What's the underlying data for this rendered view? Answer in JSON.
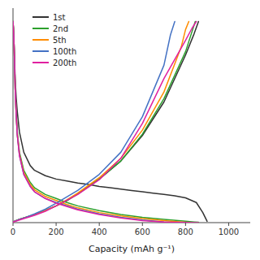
{
  "chart_data": {
    "type": "line",
    "xlabel": "Capacity (mAh g⁻¹)",
    "xlim": [
      0,
      1100
    ],
    "ylim": [
      0,
      3.2
    ],
    "xticks": [
      0,
      200,
      400,
      600,
      800,
      1000
    ],
    "tick_labels": "x",
    "legend": "upper left",
    "series": [
      {
        "name": "1st",
        "color": "#333333",
        "curves": [
          {
            "x": [
              0,
              2,
              4,
              6,
              8,
              10,
              15,
              20,
              30,
              50,
              80,
              100,
              150,
              200,
              250,
              300,
              350,
              400,
              450,
              500,
              550,
              600,
              650,
              700,
              750,
              800,
              850,
              880,
              900
            ],
            "values": [
              3.0,
              2.9,
              2.75,
              2.55,
              2.35,
              2.15,
              1.85,
              1.65,
              1.35,
              1.05,
              0.85,
              0.78,
              0.7,
              0.65,
              0.62,
              0.59,
              0.57,
              0.54,
              0.52,
              0.5,
              0.48,
              0.46,
              0.44,
              0.42,
              0.4,
              0.37,
              0.3,
              0.15,
              0.02
            ]
          },
          {
            "x": [
              0,
              30,
              60,
              100,
              150,
              200,
              250,
              300,
              400,
              500,
              600,
              700,
              800,
              840,
              860
            ],
            "values": [
              0.01,
              0.05,
              0.08,
              0.12,
              0.18,
              0.25,
              0.33,
              0.43,
              0.65,
              0.92,
              1.3,
              1.8,
              2.5,
              2.82,
              3.0
            ]
          }
        ]
      },
      {
        "name": "2nd",
        "color": "#2ca02c",
        "curves": [
          {
            "x": [
              0,
              2,
              4,
              6,
              8,
              10,
              15,
              20,
              30,
              50,
              80,
              100,
              150,
              200,
              250,
              300,
              400,
              500,
              600,
              700,
              800,
              840,
              860
            ],
            "values": [
              3.0,
              2.9,
              2.75,
              2.55,
              2.3,
              2.0,
              1.6,
              1.35,
              1.05,
              0.78,
              0.6,
              0.52,
              0.42,
              0.36,
              0.3,
              0.25,
              0.18,
              0.12,
              0.08,
              0.05,
              0.02,
              0.01,
              0.005
            ]
          },
          {
            "x": [
              0,
              30,
              60,
              100,
              150,
              200,
              250,
              300,
              400,
              500,
              600,
              700,
              800,
              830,
              845
            ],
            "values": [
              0.01,
              0.05,
              0.08,
              0.12,
              0.18,
              0.25,
              0.33,
              0.43,
              0.65,
              0.92,
              1.32,
              1.85,
              2.55,
              2.85,
              3.0
            ]
          }
        ]
      },
      {
        "name": "5th",
        "color": "#ff8c00",
        "curves": [
          {
            "x": [
              0,
              2,
              4,
              6,
              8,
              10,
              15,
              20,
              30,
              50,
              80,
              100,
              150,
              200,
              250,
              300,
              400,
              500,
              600,
              700,
              780,
              810,
              820
            ],
            "values": [
              3.0,
              2.9,
              2.75,
              2.55,
              2.3,
              2.0,
              1.6,
              1.32,
              1.02,
              0.75,
              0.57,
              0.49,
              0.39,
              0.33,
              0.27,
              0.22,
              0.15,
              0.1,
              0.06,
              0.03,
              0.01,
              0.004,
              0.002
            ]
          },
          {
            "x": [
              0,
              30,
              60,
              100,
              150,
              200,
              250,
              300,
              400,
              500,
              600,
              700,
              780,
              800,
              815
            ],
            "values": [
              0.01,
              0.05,
              0.08,
              0.12,
              0.18,
              0.25,
              0.34,
              0.44,
              0.67,
              0.96,
              1.38,
              1.95,
              2.62,
              2.88,
              3.0
            ]
          }
        ]
      },
      {
        "name": "100th",
        "color": "#4472c4",
        "curves": [
          {
            "x": [
              0,
              2,
              4,
              6,
              8,
              10,
              15,
              20,
              30,
              50,
              80,
              100,
              150,
              200,
              300,
              400,
              500,
              600,
              700,
              740,
              760
            ],
            "values": [
              3.0,
              2.9,
              2.75,
              2.55,
              2.3,
              2.0,
              1.6,
              1.3,
              1.0,
              0.72,
              0.54,
              0.46,
              0.36,
              0.3,
              0.2,
              0.13,
              0.08,
              0.04,
              0.01,
              0.004,
              0.001
            ]
          },
          {
            "x": [
              0,
              30,
              60,
              100,
              150,
              200,
              300,
              400,
              500,
              600,
              700,
              730,
              750
            ],
            "values": [
              0.01,
              0.05,
              0.08,
              0.13,
              0.2,
              0.29,
              0.48,
              0.72,
              1.05,
              1.58,
              2.35,
              2.8,
              3.0
            ]
          }
        ]
      },
      {
        "name": "200th",
        "color": "#e020a0",
        "curves": [
          {
            "x": [
              0,
              2,
              4,
              6,
              8,
              10,
              15,
              20,
              30,
              50,
              80,
              100,
              150,
              200,
              300,
              400,
              500,
              600,
              700,
              800,
              840,
              860
            ],
            "values": [
              3.0,
              2.9,
              2.75,
              2.55,
              2.3,
              2.0,
              1.6,
              1.3,
              1.0,
              0.72,
              0.54,
              0.46,
              0.36,
              0.29,
              0.19,
              0.12,
              0.07,
              0.03,
              0.01,
              0.004,
              0.001,
              0.0005
            ]
          },
          {
            "x": [
              0,
              30,
              60,
              100,
              150,
              200,
              300,
              400,
              500,
              600,
              700,
              800,
              830,
              850
            ],
            "values": [
              0.01,
              0.04,
              0.07,
              0.11,
              0.17,
              0.25,
              0.42,
              0.64,
              0.96,
              1.48,
              2.15,
              2.72,
              2.9,
              3.0
            ]
          }
        ]
      }
    ]
  }
}
